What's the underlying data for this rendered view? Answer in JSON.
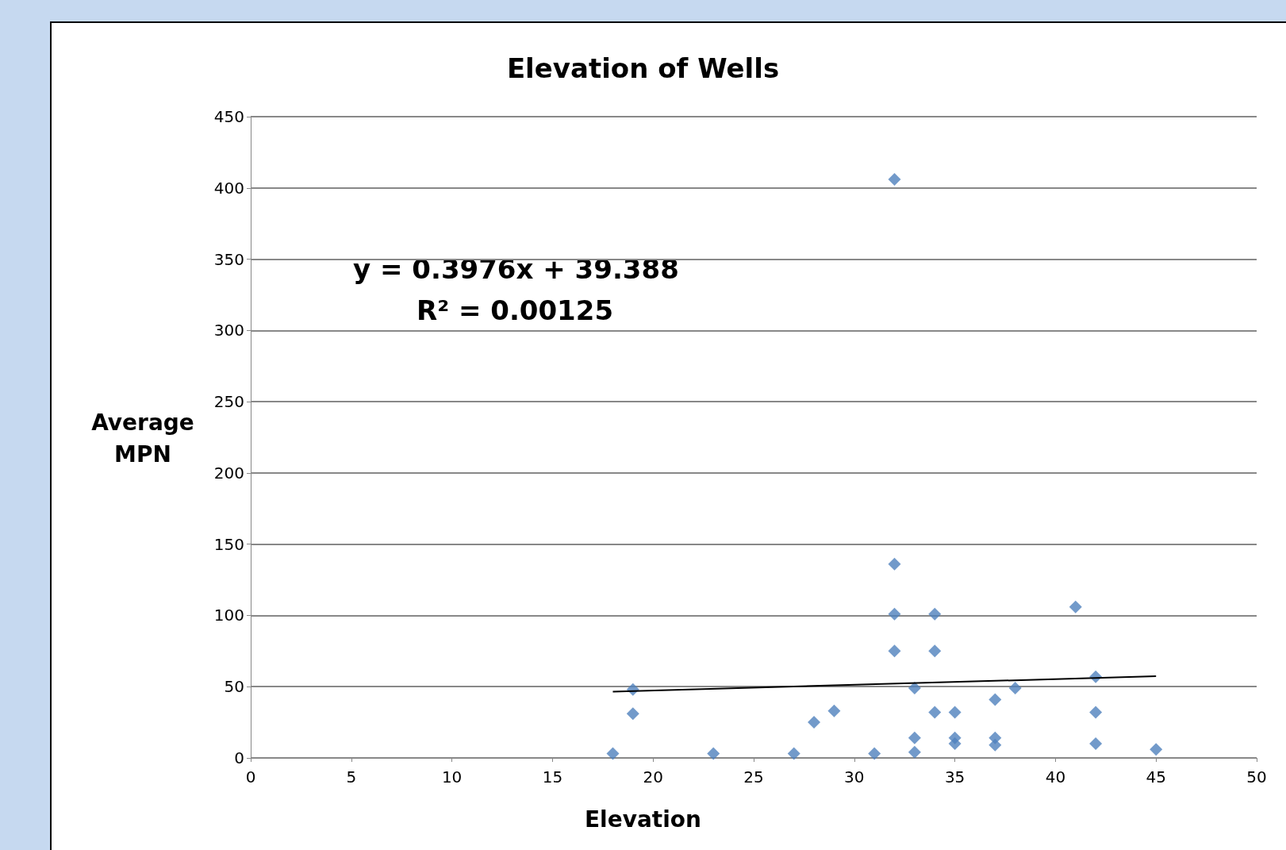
{
  "chart_data": {
    "type": "scatter",
    "title": "Elevation of Wells",
    "xlabel": "Elevation",
    "ylabel": "Average MPN",
    "xlim": [
      0,
      50
    ],
    "xticks": [
      0,
      5,
      10,
      15,
      20,
      25,
      30,
      35,
      40,
      45,
      50
    ],
    "ylim": [
      0,
      450
    ],
    "yticks": [
      0,
      50,
      100,
      150,
      200,
      250,
      300,
      350,
      400,
      450
    ],
    "grid": "y",
    "annotations": [
      "y = 0.3976x + 39.388",
      "R² = 0.00125"
    ],
    "series": [
      {
        "marker": "diamond",
        "color": "#4f81bd",
        "x": [
          18,
          19,
          19,
          23,
          27,
          28,
          29,
          31,
          32,
          32,
          32,
          32,
          33,
          33,
          33,
          34,
          34,
          34,
          35,
          35,
          35,
          37,
          37,
          37,
          38,
          41,
          42,
          42,
          42,
          45
        ],
        "values": [
          3,
          48,
          31,
          3,
          3,
          25,
          33,
          3,
          406,
          136,
          101,
          75,
          49,
          14,
          4,
          101,
          75,
          32,
          32,
          14,
          10,
          41,
          14,
          9,
          49,
          106,
          57,
          32,
          10,
          6
        ]
      },
      {
        "type": "line",
        "marker": "none",
        "color": "#000000",
        "x": [
          18,
          45
        ],
        "values": [
          46.5,
          57.3
        ]
      }
    ]
  }
}
